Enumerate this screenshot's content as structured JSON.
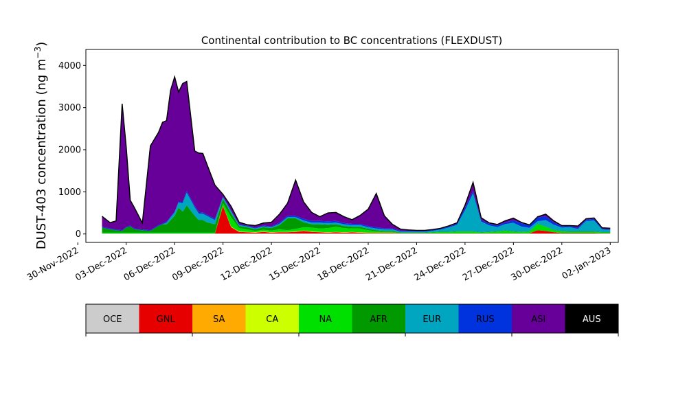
{
  "chart_data": {
    "type": "area",
    "title": "Continental contribution to BC concentrations (FLEXDUST)",
    "ylabel_main": "DUST-403 concentration (ng m",
    "ylabel_sup": "−3",
    "ylabel_tail": ")",
    "xlabel": "",
    "ylim": [
      -200,
      4380
    ],
    "xlim": [
      "2022-11-30T12:00",
      "2023-01-02T12:00"
    ],
    "grid": false,
    "y_ticks": [
      0,
      1000,
      2000,
      3000,
      4000
    ],
    "y_tick_labels": [
      "0",
      "1000",
      "2000",
      "3000",
      "4000"
    ],
    "x_ticks": [
      "2022-11-30",
      "2022-12-03",
      "2022-12-06",
      "2022-12-09",
      "2022-12-12",
      "2022-12-15",
      "2022-12-18",
      "2022-12-21",
      "2022-12-24",
      "2022-12-27",
      "2022-12-30",
      "2023-01-02"
    ],
    "x_tick_labels": [
      "30-Nov-2022",
      "03-Dec-2022",
      "06-Dec-2022",
      "09-Dec-2022",
      "12-Dec-2022",
      "15-Dec-2022",
      "18-Dec-2022",
      "21-Dec-2022",
      "24-Dec-2022",
      "27-Dec-2022",
      "30-Dec-2022",
      "02-Jan-2023"
    ],
    "x": [
      "2022-12-01T12:00",
      "2022-12-02T00:00",
      "2022-12-02T09:00",
      "2022-12-02T18:00",
      "2022-12-03T00:00",
      "2022-12-03T06:00",
      "2022-12-03T12:00",
      "2022-12-04T00:00",
      "2022-12-04T12:00",
      "2022-12-05T00:00",
      "2022-12-05T06:00",
      "2022-12-05T12:00",
      "2022-12-05T18:00",
      "2022-12-06T00:00",
      "2022-12-06T06:00",
      "2022-12-06T12:00",
      "2022-12-06T18:00",
      "2022-12-07T06:00",
      "2022-12-07T12:00",
      "2022-12-07T18:00",
      "2022-12-08T00:00",
      "2022-12-08T12:00",
      "2022-12-09T00:00",
      "2022-12-09T12:00",
      "2022-12-10T00:00",
      "2022-12-10T12:00",
      "2022-12-11T00:00",
      "2022-12-11T12:00",
      "2022-12-12T00:00",
      "2022-12-12T12:00",
      "2022-12-13T00:00",
      "2022-12-13T12:00",
      "2022-12-14T00:00",
      "2022-12-14T12:00",
      "2022-12-15T00:00",
      "2022-12-15T12:00",
      "2022-12-16T00:00",
      "2022-12-16T12:00",
      "2022-12-17T00:00",
      "2022-12-17T12:00",
      "2022-12-18T00:00",
      "2022-12-18T12:00",
      "2022-12-19T00:00",
      "2022-12-19T12:00",
      "2022-12-20T00:00",
      "2022-12-20T12:00",
      "2022-12-21T00:00",
      "2022-12-21T12:00",
      "2022-12-22T00:00",
      "2022-12-22T12:00",
      "2022-12-23T00:00",
      "2022-12-23T12:00",
      "2022-12-24T00:00",
      "2022-12-24T12:00",
      "2022-12-25T00:00",
      "2022-12-25T12:00",
      "2022-12-26T00:00",
      "2022-12-26T12:00",
      "2022-12-27T00:00",
      "2022-12-27T12:00",
      "2022-12-28T00:00",
      "2022-12-28T12:00",
      "2022-12-29T00:00",
      "2022-12-29T12:00",
      "2022-12-30T00:00",
      "2022-12-30T12:00",
      "2022-12-31T00:00",
      "2022-12-31T12:00",
      "2023-01-01T00:00",
      "2023-01-01T12:00",
      "2023-01-02T00:00"
    ],
    "series": [
      {
        "name": "OCE",
        "color": "#cccccc",
        "values": [
          10,
          10,
          10,
          10,
          10,
          10,
          10,
          10,
          10,
          10,
          10,
          10,
          10,
          10,
          10,
          10,
          10,
          10,
          10,
          10,
          10,
          10,
          10,
          10,
          10,
          10,
          10,
          10,
          10,
          10,
          10,
          10,
          10,
          10,
          10,
          10,
          10,
          10,
          10,
          10,
          10,
          10,
          10,
          10,
          10,
          10,
          10,
          10,
          10,
          10,
          10,
          10,
          10,
          10,
          10,
          10,
          10,
          10,
          10,
          10,
          10,
          10,
          10,
          10,
          10,
          10,
          10,
          10,
          10,
          10,
          10
        ]
      },
      {
        "name": "GNL",
        "color": "#e60000",
        "values": [
          0,
          0,
          0,
          0,
          0,
          0,
          0,
          0,
          0,
          0,
          0,
          0,
          0,
          0,
          0,
          0,
          0,
          0,
          0,
          0,
          0,
          0,
          650,
          150,
          40,
          30,
          20,
          40,
          20,
          30,
          30,
          40,
          60,
          40,
          30,
          20,
          30,
          20,
          30,
          20,
          10,
          10,
          10,
          10,
          5,
          5,
          5,
          5,
          5,
          5,
          5,
          5,
          5,
          5,
          5,
          5,
          5,
          5,
          5,
          5,
          5,
          80,
          60,
          30,
          10,
          10,
          10,
          10,
          10,
          5,
          5
        ]
      },
      {
        "name": "SA",
        "color": "#ffaa00",
        "values": [
          0,
          0,
          0,
          0,
          0,
          0,
          0,
          0,
          0,
          0,
          0,
          0,
          0,
          0,
          0,
          0,
          0,
          0,
          0,
          0,
          0,
          0,
          10,
          10,
          5,
          5,
          5,
          5,
          5,
          5,
          5,
          5,
          5,
          5,
          5,
          5,
          5,
          5,
          5,
          5,
          5,
          5,
          5,
          5,
          0,
          0,
          0,
          0,
          0,
          0,
          0,
          0,
          0,
          0,
          0,
          0,
          0,
          0,
          0,
          0,
          0,
          0,
          0,
          0,
          0,
          0,
          0,
          0,
          0,
          0,
          0
        ]
      },
      {
        "name": "CA",
        "color": "#ccff00",
        "values": [
          0,
          0,
          0,
          0,
          0,
          0,
          0,
          0,
          0,
          0,
          0,
          0,
          0,
          0,
          0,
          0,
          0,
          0,
          0,
          0,
          0,
          0,
          0,
          5,
          5,
          5,
          5,
          5,
          5,
          5,
          5,
          5,
          5,
          5,
          5,
          5,
          5,
          5,
          5,
          5,
          5,
          5,
          5,
          5,
          0,
          0,
          0,
          0,
          0,
          0,
          0,
          0,
          0,
          0,
          0,
          0,
          0,
          0,
          0,
          0,
          0,
          0,
          0,
          0,
          0,
          0,
          0,
          0,
          0,
          0,
          0
        ]
      },
      {
        "name": "NA",
        "color": "#00e000",
        "values": [
          20,
          20,
          20,
          20,
          20,
          20,
          20,
          20,
          20,
          20,
          20,
          20,
          20,
          20,
          20,
          20,
          20,
          20,
          20,
          20,
          20,
          20,
          60,
          220,
          80,
          60,
          30,
          40,
          40,
          60,
          40,
          60,
          80,
          90,
          80,
          100,
          120,
          100,
          80,
          90,
          60,
          30,
          20,
          20,
          10,
          10,
          10,
          10,
          20,
          30,
          30,
          40,
          40,
          40,
          20,
          30,
          40,
          60,
          40,
          30,
          40,
          140,
          100,
          50,
          40,
          30,
          30,
          30,
          30,
          20,
          20
        ]
      },
      {
        "name": "AFR",
        "color": "#009900",
        "values": [
          120,
          80,
          60,
          40,
          120,
          150,
          80,
          60,
          40,
          160,
          200,
          200,
          300,
          400,
          600,
          500,
          650,
          400,
          300,
          300,
          250,
          200,
          100,
          100,
          50,
          50,
          40,
          60,
          60,
          100,
          280,
          250,
          120,
          80,
          100,
          80,
          60,
          50,
          40,
          40,
          30,
          30,
          20,
          20,
          10,
          10,
          10,
          10,
          10,
          10,
          10,
          10,
          10,
          10,
          10,
          10,
          10,
          10,
          10,
          10,
          10,
          10,
          10,
          10,
          10,
          10,
          10,
          10,
          10,
          10,
          10
        ]
      },
      {
        "name": "EUR",
        "color": "#00a5c0",
        "values": [
          0,
          0,
          0,
          0,
          0,
          0,
          0,
          0,
          0,
          0,
          0,
          40,
          60,
          80,
          120,
          200,
          300,
          200,
          150,
          150,
          150,
          100,
          40,
          40,
          20,
          20,
          20,
          20,
          20,
          30,
          30,
          30,
          40,
          40,
          40,
          40,
          40,
          40,
          40,
          40,
          40,
          40,
          40,
          40,
          20,
          20,
          20,
          20,
          30,
          50,
          100,
          150,
          500,
          900,
          250,
          150,
          100,
          150,
          200,
          120,
          80,
          60,
          150,
          120,
          80,
          100,
          60,
          250,
          260,
          60,
          50
        ]
      },
      {
        "name": "RUS",
        "color": "#0033dd",
        "values": [
          20,
          20,
          20,
          20,
          20,
          20,
          20,
          20,
          20,
          20,
          20,
          20,
          20,
          20,
          20,
          40,
          40,
          40,
          40,
          30,
          30,
          30,
          20,
          20,
          20,
          20,
          20,
          20,
          20,
          30,
          30,
          30,
          40,
          40,
          40,
          40,
          40,
          30,
          30,
          30,
          30,
          30,
          20,
          20,
          20,
          20,
          20,
          20,
          20,
          20,
          20,
          30,
          60,
          60,
          40,
          40,
          40,
          40,
          60,
          80,
          60,
          90,
          90,
          60,
          30,
          30,
          30,
          30,
          40,
          20,
          20
        ]
      },
      {
        "name": "ASI",
        "color": "#660099",
        "values": [
          250,
          140,
          200,
          3000,
          1900,
          600,
          500,
          150,
          2000,
          2200,
          2400,
          2400,
          3000,
          3200,
          2600,
          2800,
          2600,
          1300,
          1400,
          1400,
          1200,
          800,
          50,
          100,
          50,
          20,
          50,
          60,
          100,
          200,
          300,
          850,
          400,
          200,
          100,
          200,
          200,
          150,
          100,
          200,
          400,
          800,
          300,
          100,
          40,
          20,
          10,
          10,
          10,
          10,
          20,
          20,
          60,
          200,
          50,
          20,
          20,
          40,
          50,
          20,
          10,
          20,
          50,
          30,
          20,
          10,
          40,
          20,
          20,
          20,
          20
        ]
      },
      {
        "name": "AUS",
        "color": "#000000",
        "values": [
          0,
          0,
          0,
          0,
          0,
          0,
          0,
          0,
          0,
          0,
          0,
          0,
          0,
          0,
          0,
          0,
          0,
          0,
          0,
          0,
          0,
          0,
          0,
          0,
          0,
          0,
          0,
          0,
          0,
          0,
          0,
          0,
          0,
          0,
          0,
          0,
          0,
          0,
          0,
          0,
          0,
          0,
          0,
          0,
          0,
          0,
          0,
          0,
          0,
          0,
          0,
          0,
          0,
          0,
          0,
          0,
          0,
          0,
          0,
          0,
          0,
          0,
          0,
          0,
          0,
          0,
          0,
          0,
          0,
          0,
          0
        ]
      }
    ],
    "legend_labels": [
      "OCE",
      "GNL",
      "SA",
      "CA",
      "NA",
      "AFR",
      "EUR",
      "RUS",
      "ASI",
      "AUS"
    ],
    "legend_text_colors": [
      "#000000",
      "#000000",
      "#000000",
      "#000000",
      "#000000",
      "#000000",
      "#000000",
      "#000000",
      "#000000",
      "#ffffff"
    ],
    "legend_placement": "bottom (colorbar)"
  }
}
